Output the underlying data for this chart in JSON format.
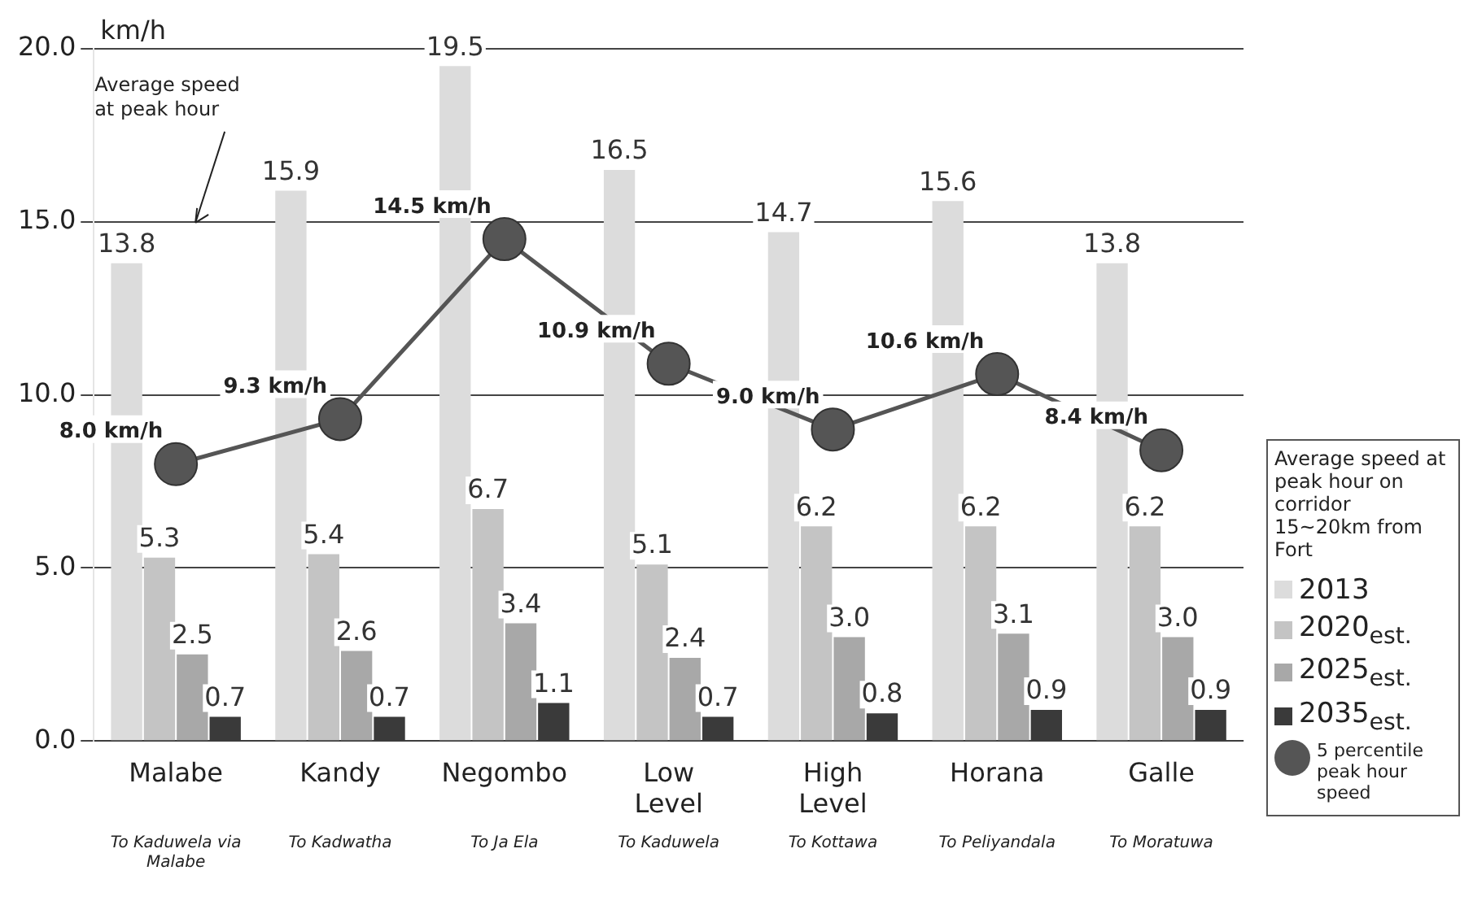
{
  "chart_data": {
    "type": "bar",
    "ylabel": "km/h",
    "legend_title": "Average speed at peak hour on corridor 15~20km from Fort",
    "categories": [
      "Malabe",
      "Kandy",
      "Negombo",
      "Low Level",
      "High Level",
      "Horana",
      "Galle"
    ],
    "series": [
      {
        "name": "2013",
        "color": "#dcdcdc",
        "values": [
          13.8,
          15.9,
          19.5,
          16.5,
          14.7,
          15.6,
          13.8
        ],
        "value_labels": [
          "13.8",
          "15.9",
          "19.5",
          "16.5",
          "14.7",
          "15.6",
          "13.8"
        ]
      },
      {
        "name": "2020$_{est.}$",
        "color": "#c4c4c4",
        "values": [
          5.3,
          5.4,
          6.7,
          5.1,
          6.2,
          6.2,
          6.2
        ],
        "value_labels": [
          "5.3",
          "5.4",
          "6.7",
          "5.1",
          "6.2",
          "6.2",
          "6.2"
        ]
      },
      {
        "name": "2025$_{est.}$",
        "color": "#a8a8a8",
        "values": [
          2.5,
          2.6,
          3.4,
          2.4,
          3.0,
          3.1,
          3.0
        ],
        "value_labels": [
          "2.5",
          "2.6",
          "3.4",
          "2.4",
          "3.0",
          "3.1",
          "3.0"
        ]
      },
      {
        "name": "2035$_{est.}$",
        "color": "#3a3a3a",
        "values": [
          0.7,
          0.7,
          1.1,
          0.7,
          0.8,
          0.9,
          0.9
        ],
        "value_labels": [
          "0.7",
          "0.7",
          "1.1",
          "0.7",
          "0.8",
          "0.9",
          "0.9"
        ]
      },
      {
        "name": "5 percentile peak hour speed",
        "type": "line",
        "color": "#555555",
        "marker": "circle",
        "line_style": "solid",
        "values": [
          8.0,
          9.3,
          14.5,
          10.9,
          9.0,
          10.6,
          8.4
        ],
        "value_labels": [
          "8.0 km/h",
          "9.3 km/h",
          "14.5 km/h",
          "10.9 km/h",
          "9.0 km/h",
          "10.6 km/h",
          "8.4 km/h"
        ]
      }
    ],
    "ylim": [
      0,
      20
    ],
    "yticks": [
      {
        "value": 0,
        "label": "0.0"
      },
      {
        "value": 5,
        "label": "5.0"
      },
      {
        "value": 10,
        "label": "10.0"
      },
      {
        "value": 15,
        "label": "15.0"
      },
      {
        "value": 20,
        "label": "20.0"
      }
    ],
    "grid": "y",
    "legend": "right",
    "annotations": [
      "Average speed at peak hour",
      "To Kaduwela via Malabe",
      "To Kadwatha",
      "To Ja Ela",
      "To Kaduwela",
      "To Kottawa",
      "To Peliyandala",
      "To Moratuwa"
    ]
  }
}
